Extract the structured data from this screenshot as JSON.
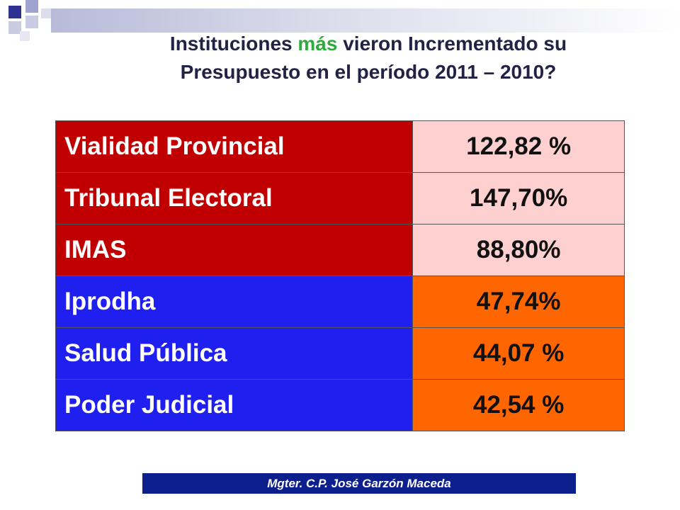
{
  "colors": {
    "title_text": "#222244",
    "title_highlight": "#2eab3c",
    "red_name_bg": "#c00000",
    "red_value_bg": "#ffd0d0",
    "blue_name_bg": "#1f1ff0",
    "blue_value_bg": "#ff6600",
    "footer_bg": "#0d1f8c"
  },
  "title": {
    "part1": "Instituciones ",
    "highlight": "más",
    "part2": " vieron Incrementado su",
    "line2": "Presupuesto en el período 2011 – 2010?"
  },
  "table": {
    "rows": [
      {
        "institution": "Vialidad Provincial",
        "value": "122,82 %",
        "group": "red"
      },
      {
        "institution": "Tribunal Electoral",
        "value": "147,70%",
        "group": "red"
      },
      {
        "institution": "IMAS",
        "value": "88,80%",
        "group": "red"
      },
      {
        "institution": "Iprodha",
        "value": "47,74%",
        "group": "blue"
      },
      {
        "institution": "Salud Pública",
        "value": "44,07 %",
        "group": "blue"
      },
      {
        "institution": "Poder Judicial",
        "value": "42,54 %",
        "group": "blue"
      }
    ]
  },
  "footer": {
    "author": "Mgter. C.P. José Garzón Maceda"
  }
}
